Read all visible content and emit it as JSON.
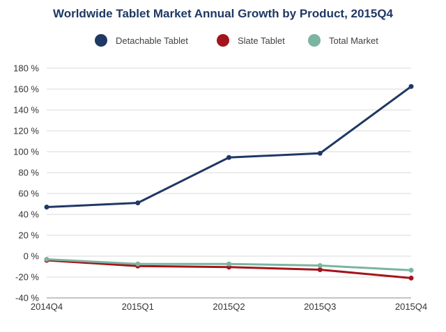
{
  "chart_data": {
    "type": "line",
    "title": "Worldwide Tablet Market Annual Growth by Product, 2015Q4",
    "categories": [
      "2014Q4",
      "2015Q1",
      "2015Q2",
      "2015Q3",
      "2015Q4"
    ],
    "series": [
      {
        "name": "Detachable Tablet",
        "color": "#1f3864",
        "values": [
          47,
          51,
          94.5,
          98.5,
          162.5
        ]
      },
      {
        "name": "Slate Tablet",
        "color": "#a3141b",
        "values": [
          -4,
          -9.5,
          -10.5,
          -13,
          -21
        ]
      },
      {
        "name": "Total Market",
        "color": "#7bb4a0",
        "values": [
          -3,
          -7.5,
          -7.5,
          -9,
          -13.5
        ]
      }
    ],
    "ylim": [
      -40,
      180
    ],
    "yticks": [
      -40,
      -20,
      0,
      20,
      40,
      60,
      80,
      100,
      120,
      140,
      160,
      180
    ],
    "ytick_labels": [
      "-40 %",
      "-20 %",
      "0 %",
      "20 %",
      "40 %",
      "60 %",
      "80 %",
      "100 %",
      "120 %",
      "140 %",
      "160 %",
      "180 %"
    ],
    "xlabel": "",
    "ylabel": "",
    "grid": true,
    "legend_position": "top-center"
  }
}
